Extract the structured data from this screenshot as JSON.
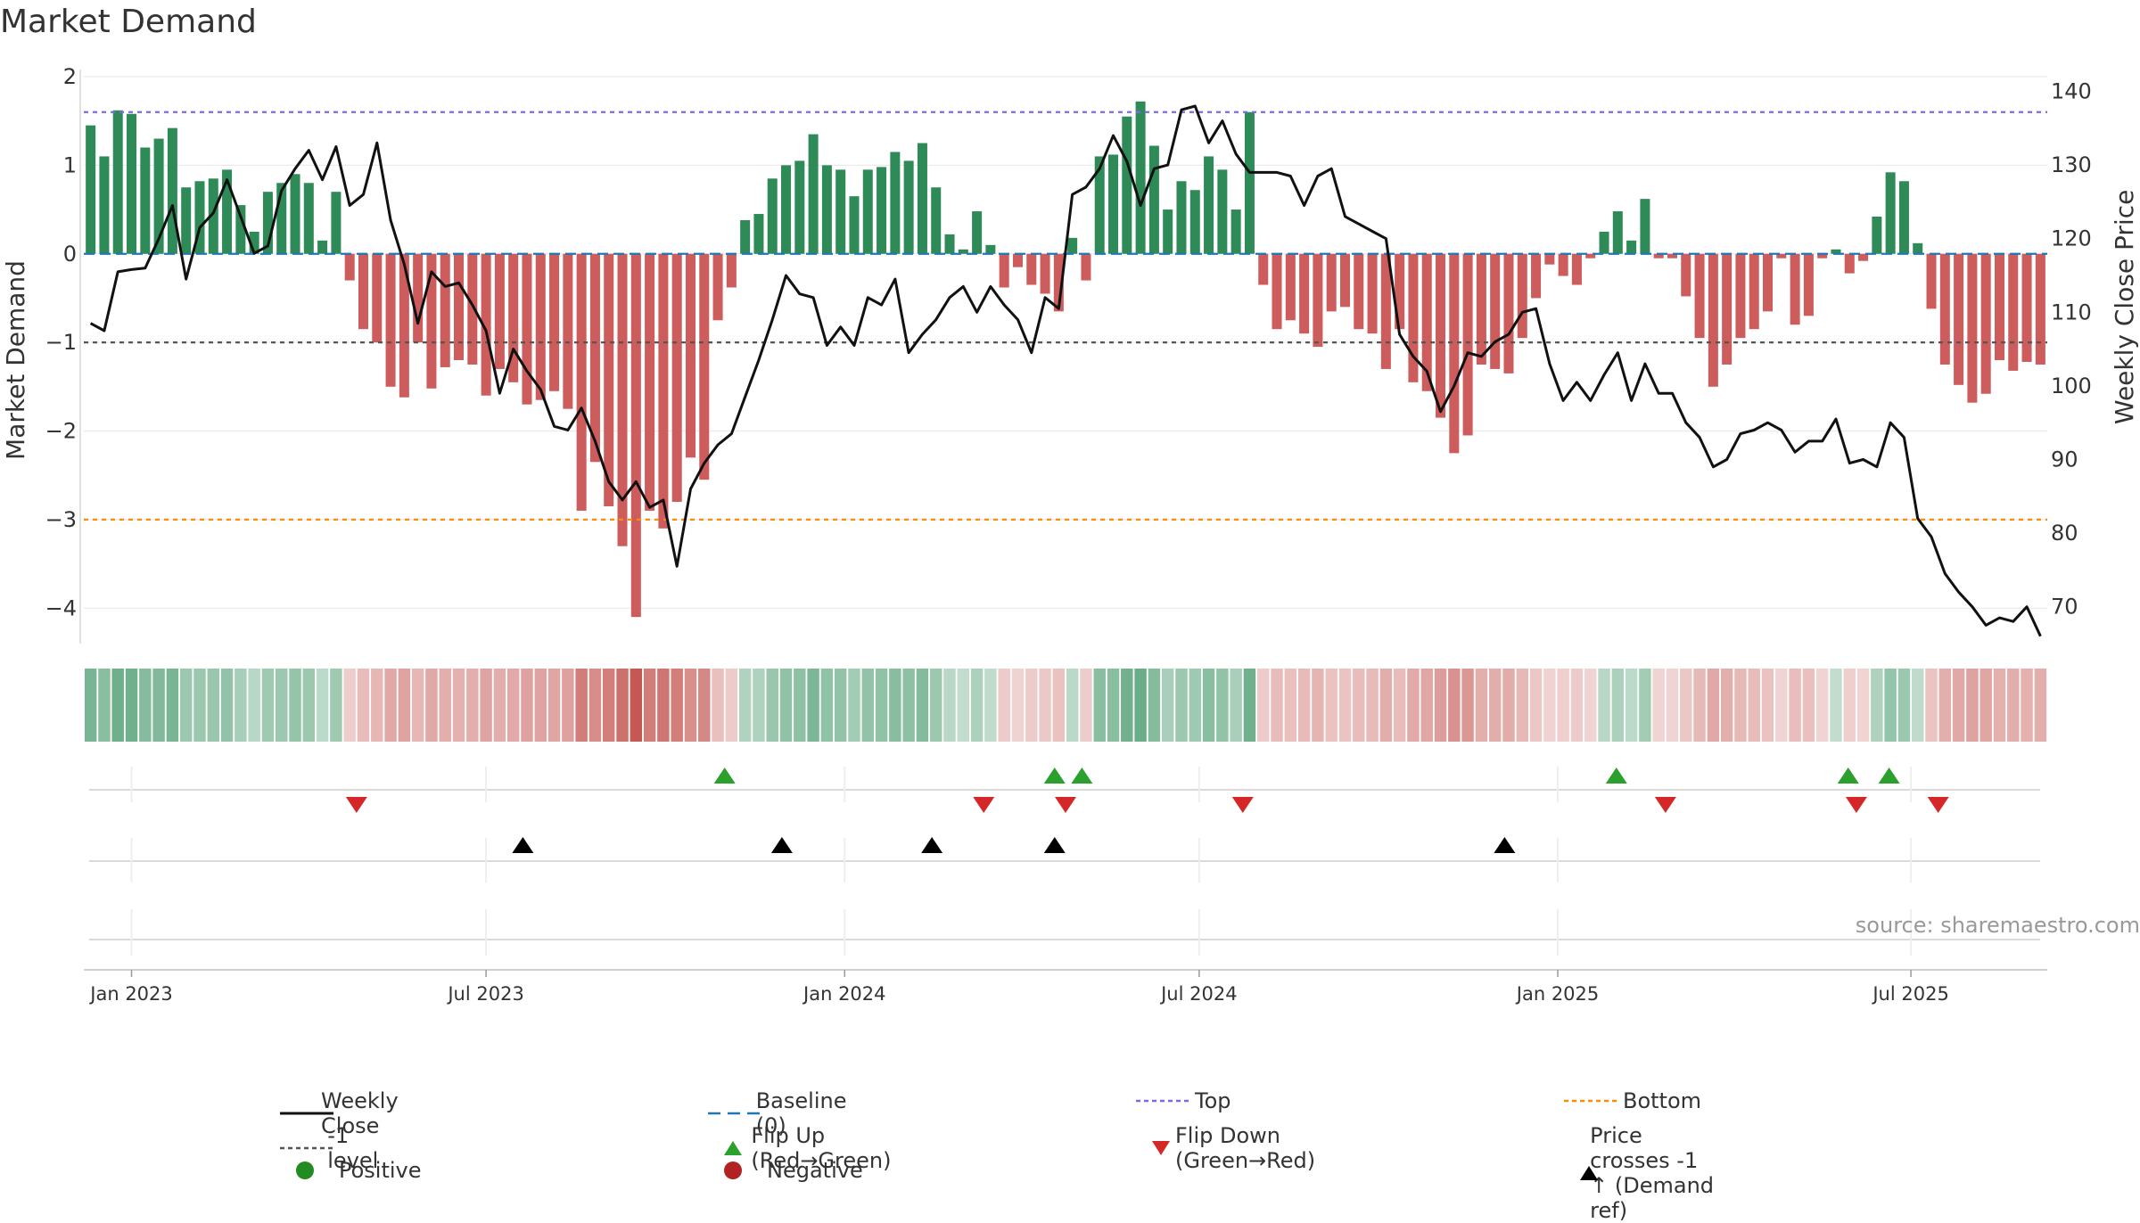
{
  "title": "Market Demand",
  "source": "source: sharemaestro.com",
  "colors": {
    "green": "#2e8b57",
    "red": "#cd5c5c",
    "line": "#111111",
    "top": "#7b68ee",
    "bottom": "#ff8c00",
    "level": "#555555",
    "baseline": "#1f77b4",
    "flip_up": "#2ca02c",
    "flip_down": "#d62728",
    "cross": "#000000",
    "positive": "#228b22",
    "negative": "#b22222"
  },
  "chart_data": {
    "type": "bar",
    "title": "Market Demand",
    "ylabel": "Market Demand",
    "y2label": "Weekly Close Price",
    "ylim": [
      -4.4,
      2.0
    ],
    "y2lim": [
      65,
      142
    ],
    "yticks": [
      2,
      1,
      0,
      -1,
      -2,
      -3,
      -4
    ],
    "y2ticks": [
      140,
      130,
      120,
      110,
      100,
      90,
      80,
      70
    ],
    "xticks": [
      {
        "label": "Jan 2023",
        "week": 3
      },
      {
        "label": "Jul 2023",
        "week": 29
      },
      {
        "label": "Jan 2024",
        "week": 55.3
      },
      {
        "label": "Jul 2024",
        "week": 81.3
      },
      {
        "label": "Jan 2025",
        "week": 107.6
      },
      {
        "label": "Jul 2025",
        "week": 133.5
      }
    ],
    "top_level": 1.6,
    "bottom_level": -3.0,
    "minus_one_level": -1.0,
    "demand": [
      1.45,
      1.1,
      1.62,
      1.58,
      1.2,
      1.3,
      1.42,
      0.75,
      0.82,
      0.85,
      0.95,
      0.55,
      0.25,
      0.7,
      0.8,
      0.9,
      0.8,
      0.15,
      0.7,
      -0.3,
      -0.85,
      -1.0,
      -1.5,
      -1.62,
      -1.0,
      -1.52,
      -1.28,
      -1.2,
      -1.25,
      -1.6,
      -1.3,
      -1.45,
      -1.7,
      -1.65,
      -1.55,
      -1.75,
      -2.9,
      -2.35,
      -2.85,
      -3.3,
      -4.1,
      -2.9,
      -3.1,
      -2.8,
      -2.3,
      -2.55,
      -0.75,
      -0.38,
      0.38,
      0.45,
      0.85,
      1.0,
      1.05,
      1.35,
      1.0,
      0.95,
      0.65,
      0.95,
      0.98,
      1.15,
      1.05,
      1.25,
      0.75,
      0.22,
      0.05,
      0.48,
      0.1,
      -0.38,
      -0.15,
      -0.35,
      -0.45,
      -0.65,
      0.18,
      -0.3,
      1.1,
      1.12,
      1.55,
      1.72,
      1.22,
      0.5,
      0.82,
      0.72,
      1.1,
      0.95,
      0.5,
      1.6,
      -0.35,
      -0.85,
      -0.75,
      -0.9,
      -1.05,
      -0.65,
      -0.6,
      -0.85,
      -0.9,
      -1.3,
      -0.85,
      -1.45,
      -1.55,
      -1.85,
      -2.25,
      -2.05,
      -1.25,
      -1.3,
      -1.35,
      -0.95,
      -0.5,
      -0.12,
      -0.25,
      -0.35,
      -0.05,
      0.25,
      0.48,
      0.15,
      0.62,
      -0.05,
      -0.05,
      -0.48,
      -0.95,
      -1.5,
      -1.25,
      -0.95,
      -0.85,
      -0.65,
      -0.05,
      -0.8,
      -0.7,
      -0.05,
      0.05,
      -0.22,
      -0.08,
      0.42,
      0.92,
      0.82,
      0.12,
      -0.62,
      -1.25,
      -1.48,
      -1.68,
      -1.58,
      -1.2,
      -1.32,
      -1.22,
      -1.25
    ],
    "price": [
      108.5,
      107.5,
      115.5,
      115.8,
      116.0,
      120.0,
      124.5,
      114.5,
      121.5,
      123.5,
      128.0,
      123.0,
      118.0,
      119.0,
      126.5,
      129.5,
      132.0,
      128.0,
      132.5,
      124.5,
      126.0,
      133.0,
      122.5,
      116.5,
      108.5,
      115.5,
      113.5,
      114.0,
      111.0,
      107.5,
      99.0,
      105.0,
      102.0,
      99.5,
      94.5,
      94.0,
      97.0,
      92.5,
      87.0,
      84.5,
      87.0,
      83.5,
      84.5,
      75.5,
      86.0,
      89.5,
      92.0,
      93.5,
      98.5,
      103.5,
      109.0,
      115.0,
      112.5,
      112.0,
      105.5,
      108.0,
      105.5,
      112.0,
      111.0,
      114.5,
      104.5,
      107.0,
      109.0,
      112.0,
      113.5,
      110.0,
      113.5,
      111.0,
      109.0,
      104.5,
      112.0,
      110.5,
      126.0,
      127.0,
      129.5,
      134.0,
      130.5,
      124.5,
      129.5,
      130.0,
      137.5,
      138.0,
      133.0,
      136.0,
      131.5,
      129.0,
      129.0,
      129.0,
      128.5,
      124.5,
      128.5,
      129.5,
      123.0,
      122.0,
      121.0,
      120.0,
      107.0,
      104.0,
      102.0,
      96.5,
      100.0,
      104.5,
      104.0,
      106.0,
      107.0,
      110.0,
      110.5,
      103.0,
      98.0,
      100.5,
      98.0,
      101.5,
      104.5,
      98.0,
      103.0,
      99.0,
      99.0,
      95.0,
      93.0,
      89.0,
      90.0,
      93.5,
      94.0,
      95.0,
      94.0,
      91.0,
      92.5,
      92.5,
      95.5,
      89.5,
      90.0,
      89.0,
      95.0,
      93.0,
      82.0,
      79.5,
      74.5,
      72.0,
      70.0,
      67.5,
      68.5,
      68.0,
      70.0,
      66.0
    ],
    "flip_up_weeks": [
      46.5,
      70.7,
      72.7,
      111.9,
      128.9,
      131.9
    ],
    "flip_down_weeks": [
      19.5,
      65.5,
      71.5,
      84.5,
      115.5,
      129.5,
      135.5
    ],
    "cross_weeks": [
      31.7,
      50.7,
      61.7,
      70.7,
      103.7
    ]
  },
  "legend": [
    {
      "label": "Weekly Close",
      "kind": "line"
    },
    {
      "label": "Baseline (0)",
      "kind": "baseline"
    },
    {
      "label": "Top",
      "kind": "top"
    },
    {
      "label": "Bottom",
      "kind": "bottom"
    },
    {
      "label": "-1 level",
      "kind": "level"
    },
    {
      "label": "Flip Up (Red→Green)",
      "kind": "flip_up"
    },
    {
      "label": "Flip Down (Green→Red)",
      "kind": "flip_down"
    },
    {
      "label": "Price crosses -1 ↑ (Demand ref)",
      "kind": "cross"
    },
    {
      "label": "Positive",
      "kind": "positive"
    },
    {
      "label": "Negative",
      "kind": "negative"
    }
  ]
}
